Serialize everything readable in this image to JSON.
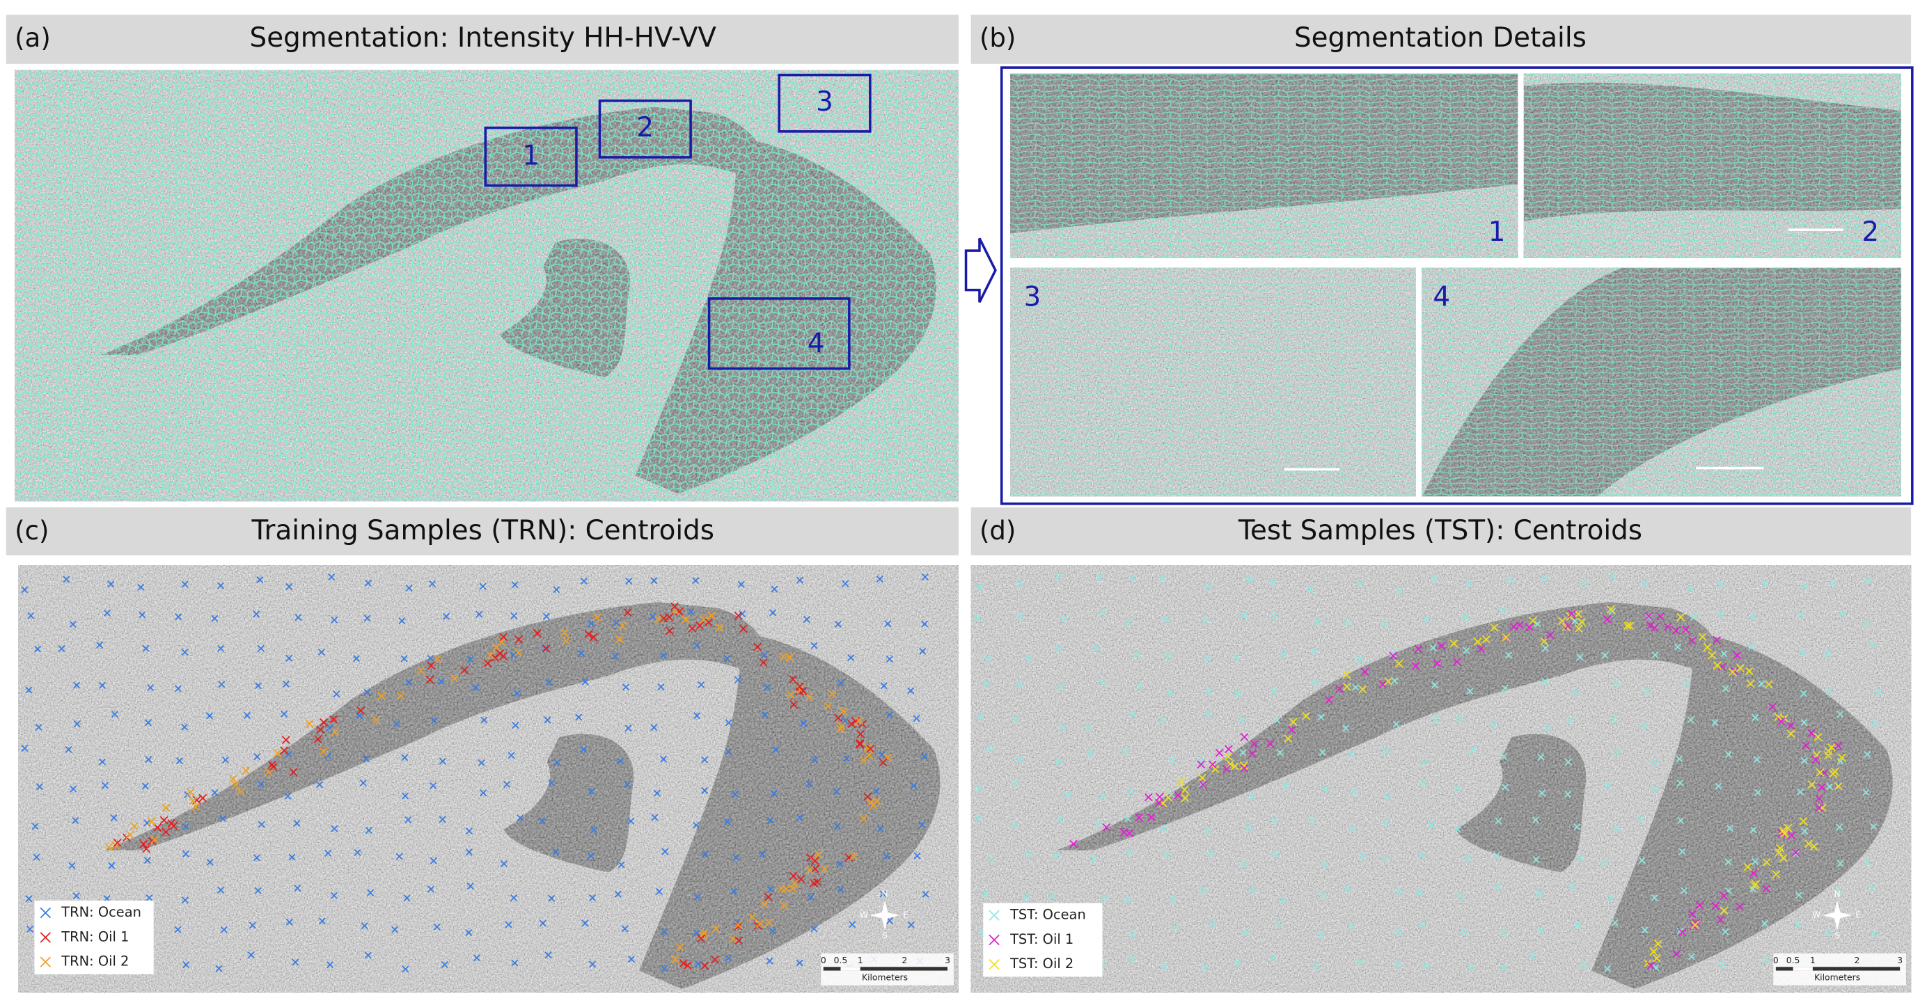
{
  "panels": [
    {
      "label": "(a)",
      "title": "Segmentation: Intensity HH-HV-VV",
      "boxes": [
        "1",
        "2",
        "3",
        "4"
      ]
    },
    {
      "label": "(b)",
      "title": "Segmentation Details",
      "insets": [
        "1",
        "2",
        "3",
        "4"
      ]
    },
    {
      "label": "(c)",
      "title": "Training Samples (TRN): Centroids",
      "legend": [
        "TRN: Ocean",
        "TRN: Oil 1",
        "TRN: Oil 2"
      ],
      "scale": [
        "0",
        "0.5",
        "1",
        "2",
        "3"
      ],
      "scale_unit": "Kilometers",
      "compass": [
        "N",
        "S",
        "W",
        "E"
      ]
    },
    {
      "label": "(d)",
      "title": "Test Samples (TST): Centroids",
      "legend": [
        "TST: Ocean",
        "TST: Oil 1",
        "TST: Oil 2"
      ],
      "scale": [
        "0",
        "0.5",
        "1",
        "2",
        "3"
      ],
      "scale_unit": "Kilometers",
      "compass": [
        "N",
        "S",
        "W",
        "E"
      ]
    }
  ]
}
